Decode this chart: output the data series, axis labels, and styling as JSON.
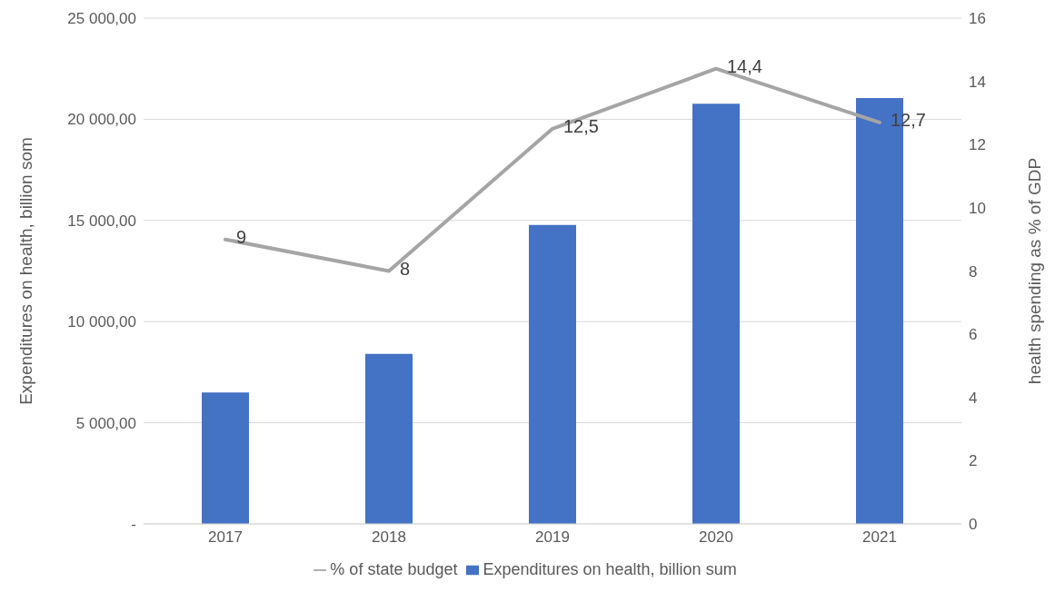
{
  "chart_data": {
    "type": "bar",
    "categories": [
      "2017",
      "2018",
      "2019",
      "2020",
      "2021"
    ],
    "series": [
      {
        "name": "Expenditures on health, billion sum",
        "color": "#4472c4",
        "values": [
          6500,
          8400,
          14780,
          20770,
          21050
        ]
      },
      {
        "type": "line",
        "name": "% of state budget",
        "color": "#a5a5a5",
        "axis": "y2",
        "values": [
          9,
          8,
          12.5,
          14.4,
          12.7
        ],
        "value_labels": [
          "9",
          "8",
          "12,5",
          "14,4",
          "12,7"
        ]
      }
    ],
    "ylabel": "Expenditures on health, billion som",
    "y2label": "health spending as % of GDP",
    "ylim": [
      0,
      25000
    ],
    "yticks": [
      {
        "value": 0,
        "label": "-"
      },
      {
        "value": 5000,
        "label": "5 000,00"
      },
      {
        "value": 10000,
        "label": "10 000,00"
      },
      {
        "value": 15000,
        "label": "15 000,00"
      },
      {
        "value": 20000,
        "label": "20 000,00"
      },
      {
        "value": 25000,
        "label": "25 000,00"
      }
    ],
    "y2lim": [
      0,
      16
    ],
    "y2ticks": [
      0,
      2,
      4,
      6,
      8,
      10,
      12,
      14,
      16
    ],
    "grid": "y",
    "legend": "bottom",
    "marker": "none",
    "line_style": "solid"
  }
}
